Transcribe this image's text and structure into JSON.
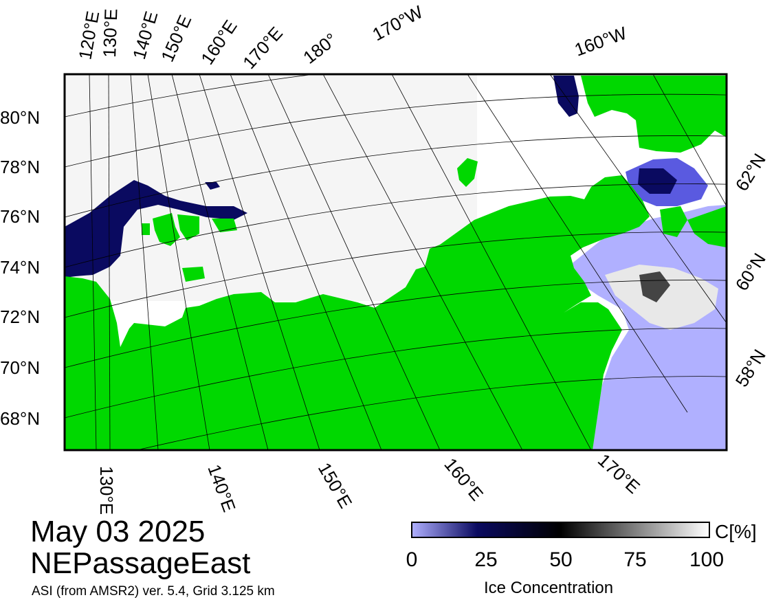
{
  "title": {
    "date": "May 03 2025",
    "region": "NEPassageEast",
    "source": "ASI (from AMSR2) ver. 5.4,  Grid 3.125 km"
  },
  "colorbar": {
    "label": "Ice Concentration",
    "unit": "C[%]",
    "ticks": [
      "0",
      "25",
      "50",
      "75",
      "100"
    ],
    "stops": [
      "#b0b0ff",
      "#0a0a60",
      "#000000",
      "#ffffff"
    ]
  },
  "graticule": {
    "lat_labels_left": [
      "80°N",
      "78°N",
      "76°N",
      "74°N",
      "72°N",
      "70°N",
      "68°N"
    ],
    "lat_labels_right": [
      "62°N",
      "60°N",
      "58°N"
    ],
    "lon_labels_top": [
      "120°E",
      "130°E",
      "140°E",
      "150°E",
      "160°E",
      "170°E",
      "180°",
      "170°W",
      "160°W"
    ],
    "lon_labels_bottom": [
      "130°E",
      "140°E",
      "150°E",
      "160°E",
      "170°E"
    ]
  },
  "colors": {
    "land": "#00d800",
    "open_water": "#b0b0ff",
    "ice_full": "#ffffff",
    "ice_low": "#0a0a60",
    "frame": "#000000"
  }
}
